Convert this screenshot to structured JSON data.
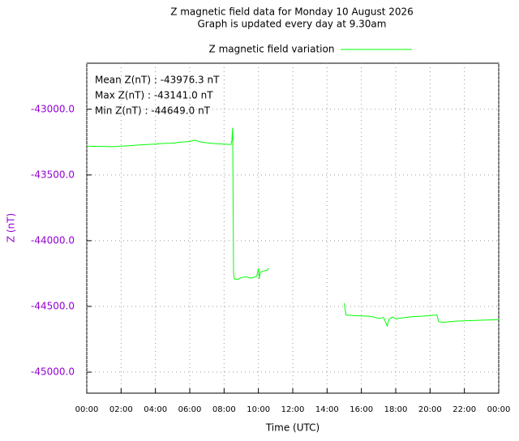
{
  "chart_data": {
    "type": "line",
    "title": "Z magnetic field data for Monday 10 August 2026",
    "subtitle": "Graph is updated every day at 9.30am",
    "x_label": "Time (UTC)",
    "y_label": "Z (nT)",
    "annotations": [
      "Mean Z(nT) : -43976.3 nT",
      "Max Z(nT) : -43141.0 nT",
      "Min Z(nT) : -44649.0 nT"
    ],
    "x": [
      0,
      0.5,
      1,
      1.5,
      2,
      2.5,
      3,
      3.5,
      4,
      4.5,
      5,
      5.5,
      6,
      6.3,
      6.6,
      7,
      7.5,
      8,
      8.4,
      8.45,
      8.5,
      8.55,
      8.6,
      8.8,
      9,
      9.3,
      9.6,
      9.9,
      10,
      10.05,
      10.1,
      10.3,
      10.5,
      10.6,
      12,
      15.0,
      15.1,
      15.5,
      16,
      16.5,
      17,
      17.3,
      17.5,
      17.6,
      17.8,
      18,
      18.5,
      19,
      19.5,
      20,
      20.4,
      20.5,
      20.7,
      21,
      21.5,
      22,
      23,
      24
    ],
    "series": [
      {
        "name": "Z magnetic field variation",
        "color": "#00ff00",
        "values": [
          -43280,
          -43282,
          -43283,
          -43285,
          -43280,
          -43278,
          -43272,
          -43268,
          -43265,
          -43260,
          -43258,
          -43250,
          -43245,
          -43235,
          -43248,
          -43255,
          -43262,
          -43265,
          -43268,
          -43240,
          -43141,
          -44250,
          -44290,
          -44295,
          -44280,
          -44275,
          -44285,
          -44270,
          -44210,
          -44290,
          -44240,
          -44230,
          -44225,
          -44210,
          null,
          -44475,
          -44565,
          -44570,
          -44572,
          -44575,
          -44590,
          -44585,
          -44649,
          -44600,
          -44580,
          -44595,
          -44585,
          -44578,
          -44575,
          -44570,
          -44565,
          -44615,
          -44622,
          -44618,
          -44612,
          -44610,
          -44605,
          -44600
        ]
      }
    ],
    "xlim": [
      0,
      24
    ],
    "ylim": [
      -45160,
      -42650
    ],
    "xticks": [
      {
        "value": 0,
        "label": "00:00"
      },
      {
        "value": 2,
        "label": "02:00"
      },
      {
        "value": 4,
        "label": "04:00"
      },
      {
        "value": 6,
        "label": "06:00"
      },
      {
        "value": 8,
        "label": "08:00"
      },
      {
        "value": 10,
        "label": "10:00"
      },
      {
        "value": 12,
        "label": "12:00"
      },
      {
        "value": 14,
        "label": "14:00"
      },
      {
        "value": 16,
        "label": "16:00"
      },
      {
        "value": 18,
        "label": "18:00"
      },
      {
        "value": 20,
        "label": "20:00"
      },
      {
        "value": 22,
        "label": "22:00"
      },
      {
        "value": 24,
        "label": "00:00"
      }
    ],
    "yticks": [
      {
        "value": -43000,
        "label": "-43000.0"
      },
      {
        "value": -43500,
        "label": "-43500.0"
      },
      {
        "value": -44000,
        "label": "-44000.0"
      },
      {
        "value": -44500,
        "label": "-44500.0"
      },
      {
        "value": -45000,
        "label": "-45000.0"
      }
    ],
    "grid": true,
    "tick_color": "#9400d3"
  }
}
